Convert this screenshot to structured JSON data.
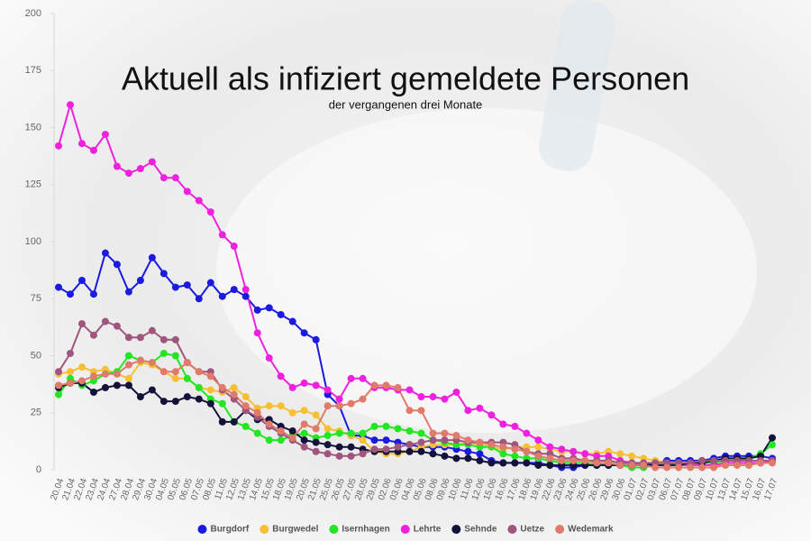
{
  "chart_data": {
    "type": "line",
    "title": "Aktuell als infiziert gemeldete Personen",
    "subtitle": "der vergangenen drei Monate",
    "categories": [
      "20.04",
      "21.04",
      "22.04",
      "23.04",
      "24.04",
      "27.04",
      "28.04",
      "29.04",
      "30.04",
      "04.05",
      "05.05",
      "06.05",
      "07.05",
      "08.05",
      "11.05",
      "12.05",
      "13.05",
      "14.05",
      "15.05",
      "18.05",
      "19.05",
      "20.05",
      "21.05",
      "25.05",
      "26.05",
      "27.05",
      "28.05",
      "29.05",
      "02.06",
      "03.06",
      "04.06",
      "05.06",
      "08.06",
      "09.06",
      "10.06",
      "11.06",
      "12.06",
      "15.06",
      "16.06",
      "17.06",
      "18.06",
      "19.06",
      "22.06",
      "23.06",
      "24.06",
      "25.06",
      "26.06",
      "29.06",
      "30.06",
      "01.07",
      "02.07",
      "03.07",
      "06.07",
      "07.07",
      "08.07",
      "09.07",
      "10.07",
      "13.07",
      "14.07",
      "15.07",
      "16.07",
      "17.07"
    ],
    "series": [
      {
        "name": "Burgdorf",
        "color": "#1a1ae0",
        "values": [
          80,
          77,
          83,
          77,
          95,
          90,
          78,
          83,
          93,
          86,
          80,
          81,
          75,
          82,
          76,
          79,
          76,
          70,
          71,
          68,
          65,
          60,
          57,
          33,
          28,
          15,
          15,
          13,
          13,
          12,
          11,
          10,
          10,
          10,
          9,
          8,
          7,
          4,
          3,
          3,
          3,
          3,
          2,
          1,
          1,
          2,
          2,
          2,
          2,
          2,
          2,
          3,
          4,
          4,
          4,
          4,
          5,
          6,
          6,
          6,
          6,
          5
        ]
      },
      {
        "name": "Burgwedel",
        "color": "#f5c033",
        "values": [
          42,
          43,
          45,
          43,
          44,
          42,
          40,
          47,
          46,
          43,
          40,
          40,
          36,
          35,
          34,
          36,
          32,
          27,
          28,
          28,
          25,
          26,
          24,
          18,
          17,
          15,
          13,
          8,
          7,
          7,
          8,
          10,
          11,
          11,
          11,
          12,
          11,
          10,
          9,
          10,
          10,
          10,
          9,
          8,
          8,
          7,
          7,
          8,
          7,
          6,
          5,
          4,
          3,
          3,
          2,
          2,
          2,
          2,
          2,
          2,
          3,
          4
        ]
      },
      {
        "name": "Isernhagen",
        "color": "#22e622",
        "values": [
          33,
          40,
          37,
          39,
          42,
          43,
          50,
          48,
          47,
          51,
          50,
          40,
          36,
          31,
          29,
          21,
          19,
          16,
          13,
          13,
          15,
          16,
          14,
          15,
          16,
          16,
          16,
          19,
          19,
          18,
          17,
          16,
          13,
          12,
          11,
          11,
          10,
          10,
          7,
          6,
          5,
          5,
          4,
          3,
          3,
          3,
          2,
          2,
          2,
          1,
          1,
          2,
          2,
          3,
          3,
          3,
          3,
          4,
          4,
          5,
          7,
          11
        ]
      },
      {
        "name": "Lehrte",
        "color": "#f020e0",
        "values": [
          142,
          160,
          143,
          140,
          147,
          133,
          130,
          132,
          135,
          128,
          128,
          122,
          118,
          113,
          103,
          98,
          79,
          60,
          49,
          41,
          36,
          38,
          37,
          35,
          31,
          40,
          40,
          36,
          36,
          35,
          35,
          32,
          32,
          31,
          34,
          26,
          27,
          24,
          20,
          19,
          16,
          13,
          10,
          9,
          8,
          7,
          6,
          6,
          4,
          3,
          2,
          2,
          2,
          2,
          2,
          2,
          2,
          3,
          3,
          3,
          3,
          4
        ]
      },
      {
        "name": "Sehnde",
        "color": "#12123a",
        "values": [
          36,
          38,
          38,
          34,
          36,
          37,
          37,
          32,
          35,
          30,
          30,
          32,
          31,
          29,
          21,
          21,
          26,
          22,
          22,
          19,
          17,
          13,
          12,
          11,
          10,
          10,
          9,
          8,
          8,
          8,
          8,
          8,
          7,
          6,
          5,
          5,
          4,
          3,
          3,
          3,
          3,
          2,
          2,
          2,
          2,
          2,
          2,
          2,
          2,
          2,
          2,
          2,
          2,
          2,
          3,
          3,
          4,
          5,
          5,
          5,
          6,
          14
        ]
      },
      {
        "name": "Uetze",
        "color": "#a0557e",
        "values": [
          43,
          51,
          64,
          59,
          65,
          63,
          58,
          58,
          61,
          57,
          57,
          47,
          43,
          43,
          35,
          31,
          26,
          23,
          19,
          16,
          13,
          10,
          8,
          7,
          6,
          6,
          7,
          9,
          9,
          10,
          11,
          12,
          13,
          13,
          13,
          12,
          12,
          12,
          12,
          11,
          8,
          7,
          7,
          5,
          5,
          4,
          4,
          4,
          3,
          3,
          3,
          3,
          3,
          3,
          3,
          4,
          4,
          4,
          4,
          4,
          4,
          4
        ]
      },
      {
        "name": "Wedemark",
        "color": "#e07a6a",
        "values": [
          37,
          38,
          39,
          41,
          42,
          42,
          46,
          48,
          47,
          43,
          43,
          47,
          43,
          41,
          36,
          33,
          28,
          25,
          20,
          17,
          14,
          20,
          18,
          28,
          28,
          29,
          31,
          37,
          37,
          36,
          26,
          26,
          16,
          16,
          15,
          13,
          12,
          11,
          10,
          9,
          8,
          6,
          5,
          4,
          4,
          4,
          3,
          3,
          2,
          2,
          2,
          1,
          1,
          1,
          1,
          1,
          1,
          2,
          2,
          2,
          3,
          3
        ]
      }
    ],
    "ylim": [
      0,
      200
    ],
    "yticks": [
      0,
      25,
      50,
      75,
      100,
      125,
      150,
      175,
      200
    ],
    "grid": false,
    "legend": "bottom"
  }
}
